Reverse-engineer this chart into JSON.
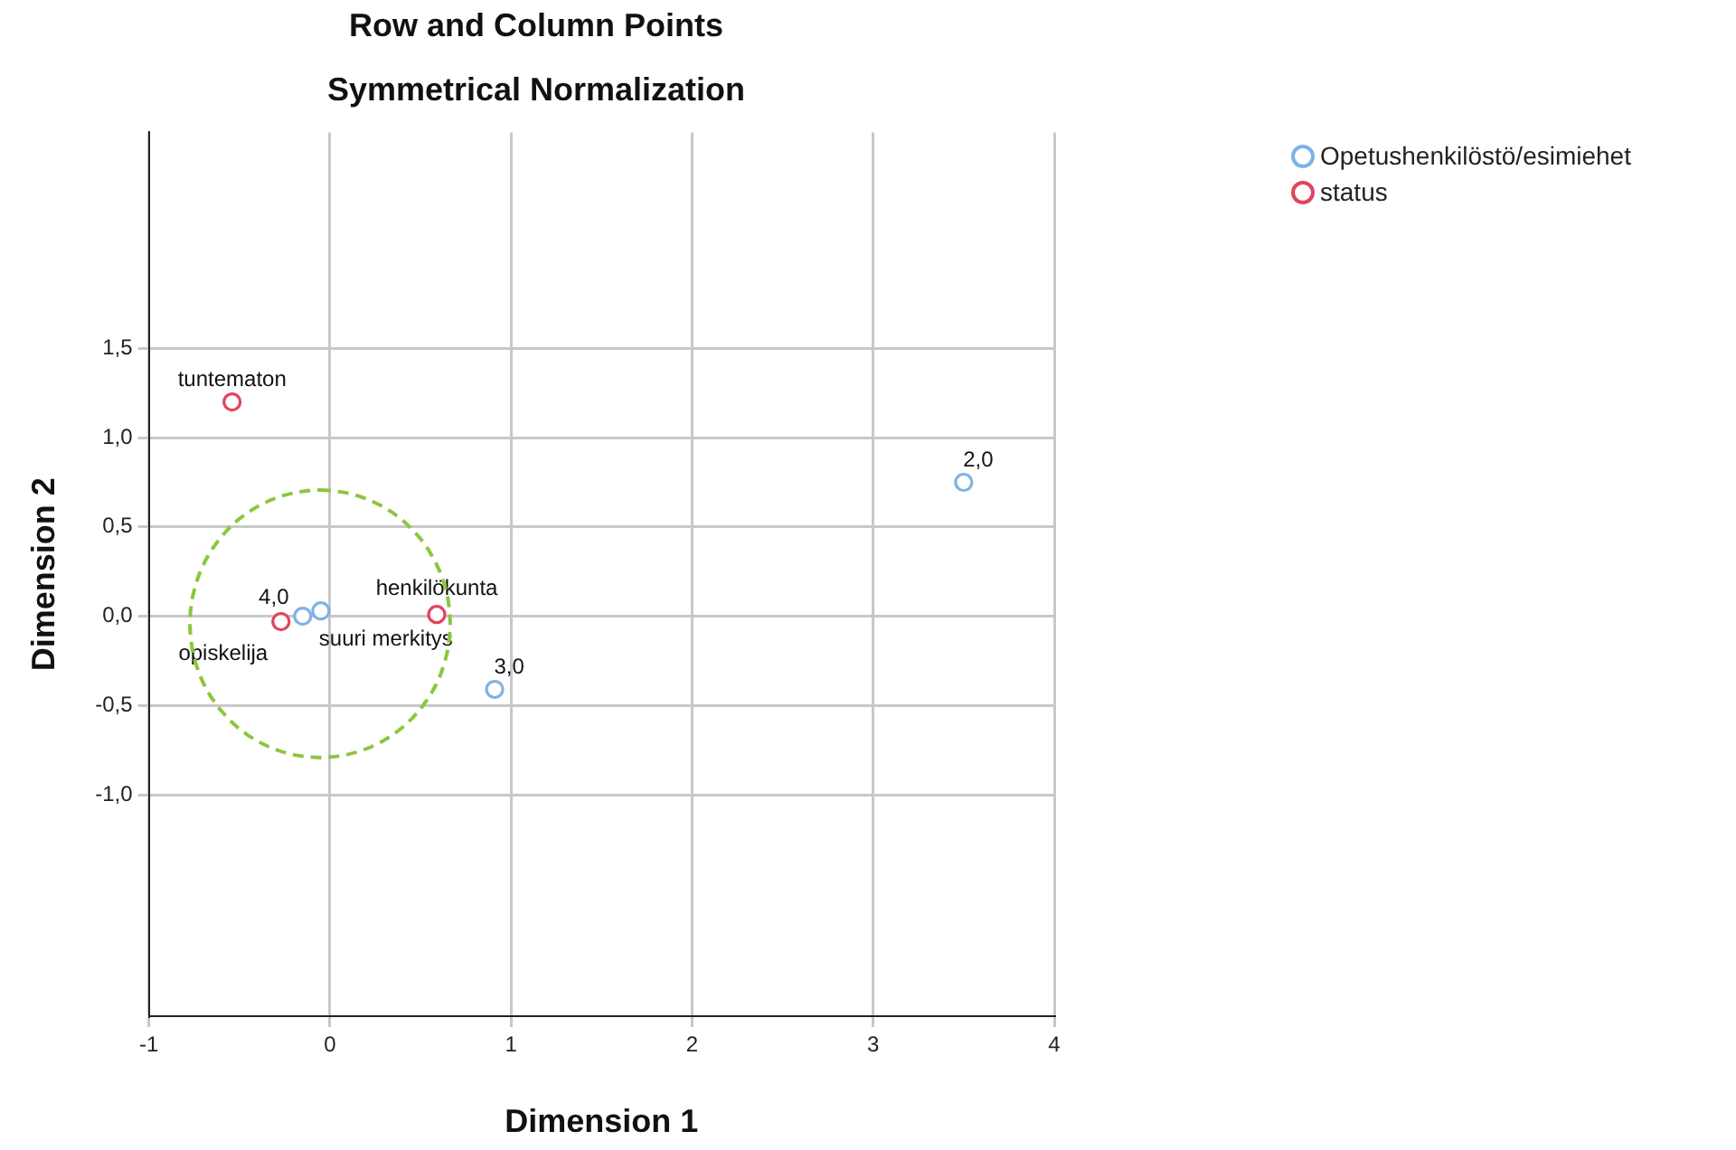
{
  "chart_data": {
    "type": "scatter",
    "title": "Row and Column Points",
    "subtitle": "Symmetrical Normalization",
    "xlabel": "Dimension 1",
    "ylabel": "Dimension 2",
    "xlim": [
      -1,
      4
    ],
    "xticks": [
      -1,
      0,
      1,
      2,
      3,
      4
    ],
    "ylim": [
      -2.24,
      2.71
    ],
    "yticks": [
      {
        "value": -1,
        "label": "-1,0"
      },
      {
        "value": -0.5,
        "label": "-0,5"
      },
      {
        "value": 0,
        "label": "0,0"
      },
      {
        "value": 0.5,
        "label": "0,5"
      },
      {
        "value": 1,
        "label": "1,0"
      },
      {
        "value": 1.5,
        "label": "1,5"
      }
    ],
    "grid": true,
    "legend": "top right",
    "marker": "circle",
    "series": [
      {
        "name": "Opetushenkilöstö/esimiehet",
        "color": "#7fb2e5",
        "x": [
          3.5,
          0.91,
          -0.15,
          -0.05
        ],
        "values": [
          0.75,
          -0.41,
          0.0,
          0.03
        ]
      },
      {
        "name": "status",
        "color": "#e3435f",
        "x": [
          -0.54,
          -0.27,
          0.59
        ],
        "values": [
          1.2,
          -0.03,
          0.01
        ]
      }
    ],
    "annotations": [
      {
        "text": "2,0",
        "x": 3.5,
        "y": 0.75
      },
      {
        "text": "3,0",
        "x": 0.91,
        "y": -0.41
      },
      {
        "text": "4,0",
        "x": -0.15,
        "y": 0.0
      },
      {
        "text": "suuri merkitys",
        "x": -0.05,
        "y": 0.03
      },
      {
        "text": "tuntematon",
        "x": -0.54,
        "y": 1.2
      },
      {
        "text": "opiskelija",
        "x": -0.27,
        "y": -0.03
      },
      {
        "text": "henkilökunta",
        "x": 0.59,
        "y": 0.01
      }
    ]
  }
}
